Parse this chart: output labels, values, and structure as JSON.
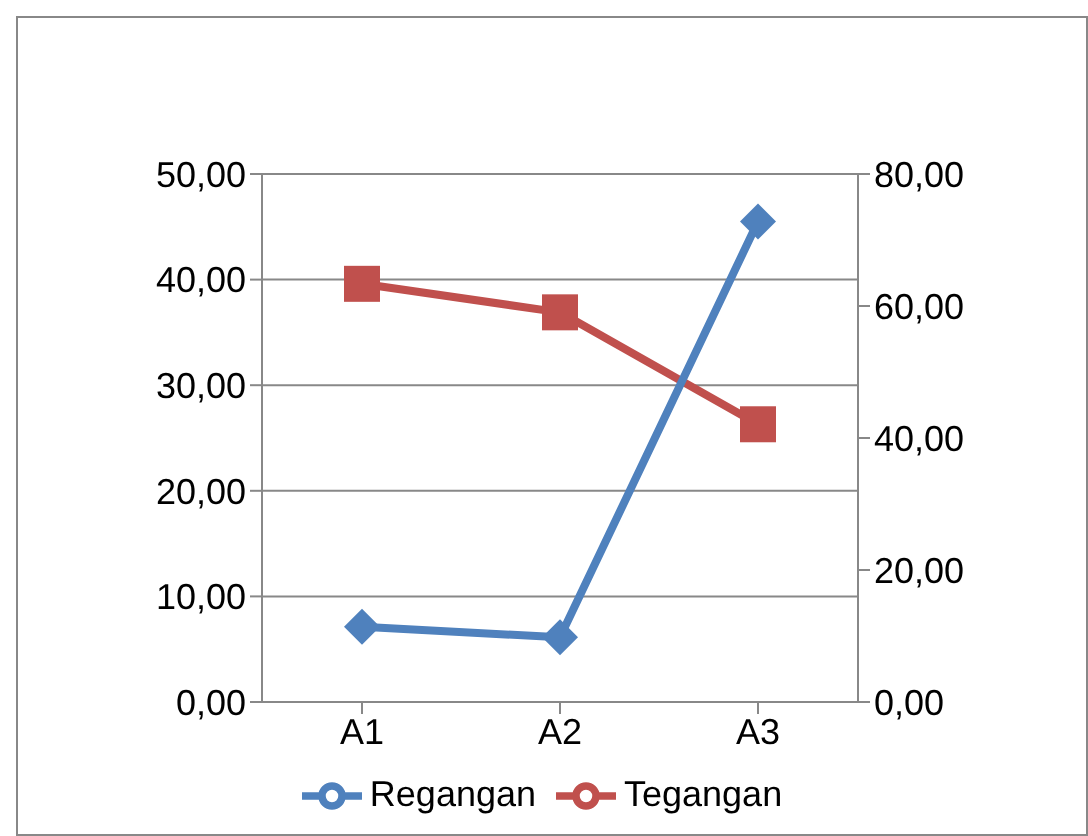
{
  "chart_data": {
    "type": "line",
    "categories": [
      "A1",
      "A2",
      "A3"
    ],
    "series": [
      {
        "name": "Tegangan",
        "color": "#c0504d",
        "values": [
          39.6,
          36.9,
          26.3
        ],
        "marker": "square"
      },
      {
        "name": "Regangan",
        "color": "#4f81bd",
        "values": [
          11.4,
          9.8,
          72.8
        ],
        "marker": "diamond",
        "axis": "y2"
      }
    ],
    "ylim": [
      0,
      50
    ],
    "yticks": [
      {
        "value": 0,
        "label": "0,00"
      },
      {
        "value": 10,
        "label": "10,00"
      },
      {
        "value": 20,
        "label": "20,00"
      },
      {
        "value": 30,
        "label": "30,00"
      },
      {
        "value": 40,
        "label": "40,00"
      },
      {
        "value": 50,
        "label": "50,00"
      }
    ],
    "y2lim": [
      0,
      80
    ],
    "y2ticks": [
      {
        "value": 0,
        "label": "0,00"
      },
      {
        "value": 20,
        "label": "20,00"
      },
      {
        "value": 40,
        "label": "40,00"
      },
      {
        "value": 60,
        "label": "60,00"
      },
      {
        "value": 80,
        "label": "80,00"
      }
    ],
    "grid": "y",
    "legend": "bottom"
  }
}
